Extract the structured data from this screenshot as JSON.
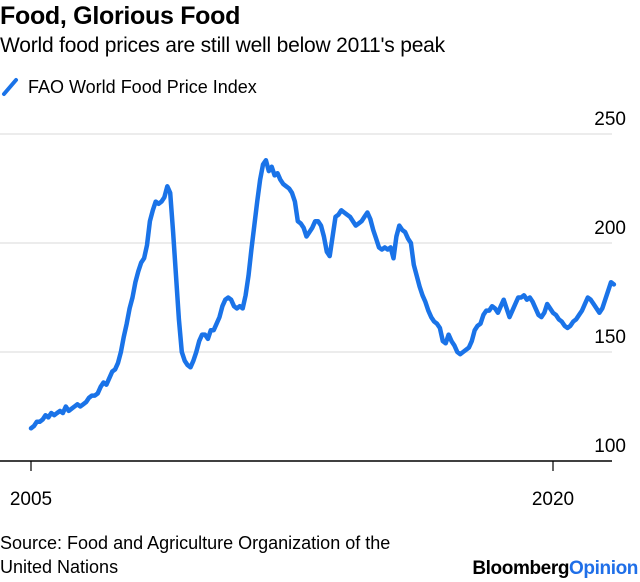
{
  "header": {
    "title": "Food, Glorious Food",
    "subtitle": "World food prices are still well below 2011's peak"
  },
  "legend": {
    "icon": "line-swatch-icon",
    "label": "FAO World Food Price Index",
    "color": "#1a73e8"
  },
  "footer": {
    "source": "Source: Food and Agriculture Organization of the United Nations",
    "brand_primary": "Bloomberg",
    "brand_secondary": "Opinion",
    "brand_secondary_color": "#1f6fe8"
  },
  "chart_data": {
    "type": "line",
    "title": "Food, Glorious Food",
    "subtitle": "World food prices are still well below 2011's peak",
    "xlabel": "",
    "ylabel": "",
    "x_start": "2005-01",
    "x_step": "month",
    "xlim": [
      2005.0,
      2021.5
    ],
    "ylim": [
      100,
      250
    ],
    "yticks": [
      100,
      150,
      200,
      250
    ],
    "ytick_labels": [
      "100",
      "150",
      "200",
      "250"
    ],
    "xticks": [
      2005,
      2020
    ],
    "xtick_labels": [
      "2005",
      "2020"
    ],
    "grid": true,
    "legend_position": "top-left",
    "series": [
      {
        "name": "FAO World Food Price Index",
        "color": "#1a73e8",
        "values": [
          115,
          116,
          118,
          118,
          119,
          121,
          120,
          122,
          121,
          122,
          123,
          122,
          125,
          123,
          124,
          125,
          126,
          125,
          126,
          127,
          129,
          130,
          130,
          131,
          134,
          136,
          135,
          138,
          141,
          142,
          145,
          150,
          157,
          163,
          170,
          175,
          182,
          187,
          191,
          193,
          199,
          210,
          215,
          219,
          218,
          219,
          221,
          226,
          223,
          205,
          185,
          165,
          150,
          146,
          144,
          143,
          146,
          150,
          155,
          158,
          158,
          156,
          160,
          160,
          163,
          166,
          171,
          174,
          175,
          174,
          171,
          170,
          171,
          170,
          176,
          185,
          197,
          208,
          219,
          229,
          236,
          238,
          233,
          235,
          231,
          232,
          229,
          227,
          226,
          225,
          223,
          219,
          210,
          209,
          207,
          203,
          205,
          207,
          210,
          210,
          208,
          203,
          196,
          194,
          203,
          212,
          213,
          215,
          214,
          213,
          212,
          210,
          208,
          209,
          210,
          212,
          214,
          211,
          206,
          202,
          198,
          197,
          198,
          197,
          198,
          193,
          203,
          208,
          206,
          205,
          202,
          200,
          190,
          185,
          180,
          176,
          173,
          169,
          166,
          164,
          163,
          161,
          155,
          154,
          158,
          155,
          153,
          150,
          149,
          150,
          151,
          152,
          155,
          160,
          162,
          163,
          167,
          169,
          169,
          171,
          170,
          168,
          171,
          174,
          170,
          166,
          169,
          172,
          175,
          175,
          176,
          174,
          175,
          173,
          170,
          167,
          166,
          168,
          172,
          170,
          168,
          167,
          165,
          164,
          162,
          161,
          162,
          164,
          165,
          167,
          169,
          172,
          175,
          174,
          172,
          170,
          168,
          170,
          174,
          178,
          182,
          181
        ]
      }
    ]
  }
}
